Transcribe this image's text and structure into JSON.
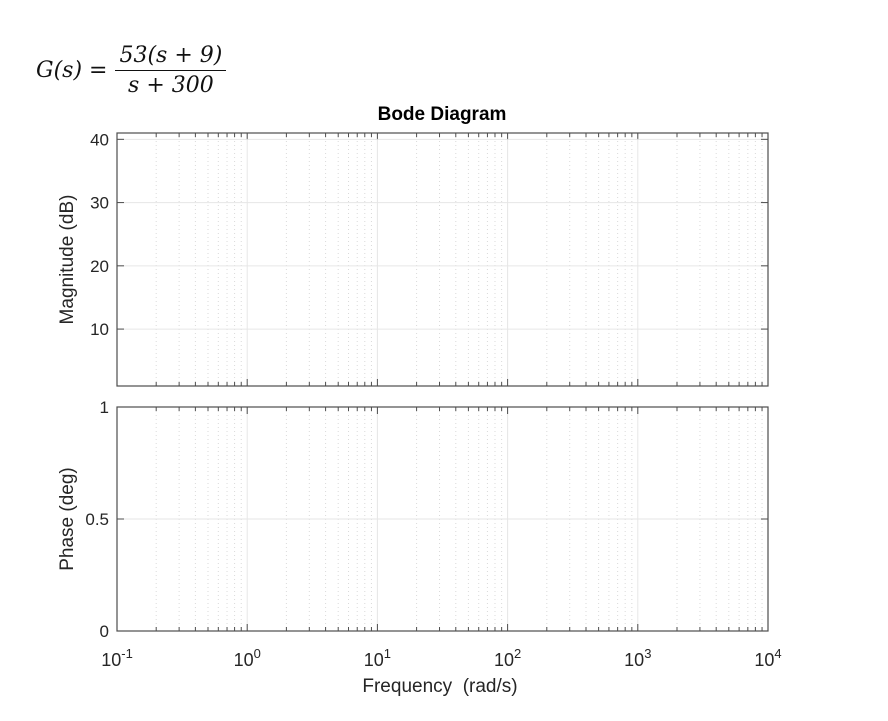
{
  "formula": {
    "lhs": "G(s) =",
    "numerator": "53(s + 9)",
    "denominator": "s + 300"
  },
  "chart_data": {
    "type": "line",
    "title": "Bode Diagram",
    "xlabel": "Frequency  (rad/s)",
    "x_scale": "log",
    "xlim": [
      0.1,
      10000
    ],
    "x_ticks": [
      {
        "value": 0.1,
        "base": "10",
        "exp": "-1"
      },
      {
        "value": 1,
        "base": "10",
        "exp": "0"
      },
      {
        "value": 10,
        "base": "10",
        "exp": "1"
      },
      {
        "value": 100,
        "base": "10",
        "exp": "2"
      },
      {
        "value": 1000,
        "base": "10",
        "exp": "3"
      },
      {
        "value": 10000,
        "base": "10",
        "exp": "4"
      }
    ],
    "grid": true,
    "subplots": [
      {
        "ylabel": "Magnitude (dB)",
        "ylim": [
          1,
          41
        ],
        "y_ticks": [
          {
            "value": 10,
            "label": "10"
          },
          {
            "value": 20,
            "label": "20"
          },
          {
            "value": 30,
            "label": "30"
          },
          {
            "value": 40,
            "label": "40"
          }
        ],
        "series": []
      },
      {
        "ylabel": "Phase (deg)",
        "ylim": [
          0,
          1
        ],
        "y_ticks": [
          {
            "value": 0,
            "label": "0"
          },
          {
            "value": 0.5,
            "label": "0.5"
          },
          {
            "value": 1,
            "label": "1"
          }
        ],
        "series": []
      }
    ],
    "colors": {
      "axis": "#4d4d4d",
      "grid": "#e6e6e6",
      "text": "#262626"
    }
  }
}
